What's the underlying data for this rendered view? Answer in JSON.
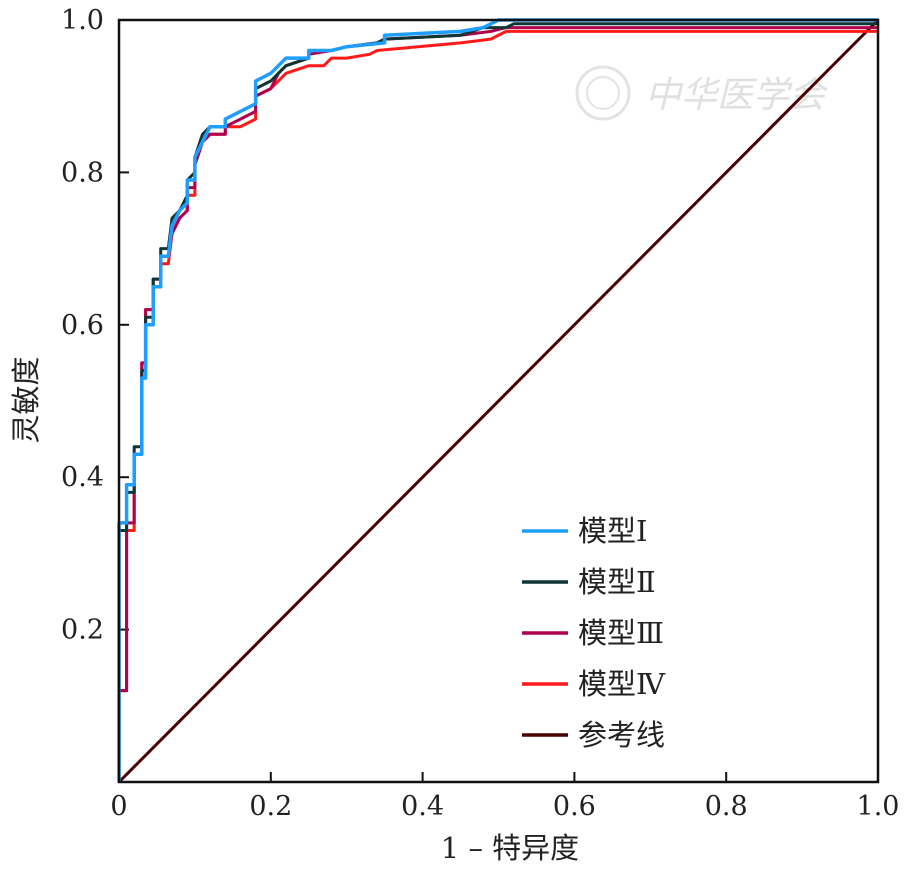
{
  "watermark": {
    "text": "中华医学会"
  },
  "chart_data": {
    "type": "line",
    "title": "",
    "xlabel": "1 – 特异度",
    "ylabel": "灵敏度",
    "xlim": [
      0,
      1
    ],
    "ylim": [
      0,
      1
    ],
    "x_ticks": [
      {
        "value": 0,
        "label": "0"
      },
      {
        "value": 0.2,
        "label": "0.2"
      },
      {
        "value": 0.4,
        "label": "0.4"
      },
      {
        "value": 0.6,
        "label": "0.6"
      },
      {
        "value": 0.8,
        "label": "0.8"
      },
      {
        "value": 1.0,
        "label": "1.0"
      }
    ],
    "y_ticks": [
      {
        "value": 0.2,
        "label": "0.2"
      },
      {
        "value": 0.4,
        "label": "0.4"
      },
      {
        "value": 0.6,
        "label": "0.6"
      },
      {
        "value": 0.8,
        "label": "0.8"
      },
      {
        "value": 1.0,
        "label": "1.0"
      }
    ],
    "grid": false,
    "legend_position": "bottom-right",
    "series": [
      {
        "name": "模型Ⅰ",
        "color": "#1e9fff",
        "width": 3.5,
        "points": [
          [
            0,
            0
          ],
          [
            0,
            0.34
          ],
          [
            0.01,
            0.34
          ],
          [
            0.01,
            0.39
          ],
          [
            0.02,
            0.39
          ],
          [
            0.02,
            0.43
          ],
          [
            0.03,
            0.43
          ],
          [
            0.03,
            0.53
          ],
          [
            0.035,
            0.53
          ],
          [
            0.035,
            0.6
          ],
          [
            0.045,
            0.6
          ],
          [
            0.045,
            0.65
          ],
          [
            0.055,
            0.65
          ],
          [
            0.055,
            0.69
          ],
          [
            0.065,
            0.69
          ],
          [
            0.07,
            0.73
          ],
          [
            0.08,
            0.75
          ],
          [
            0.09,
            0.76
          ],
          [
            0.09,
            0.79
          ],
          [
            0.1,
            0.79
          ],
          [
            0.1,
            0.82
          ],
          [
            0.11,
            0.84
          ],
          [
            0.12,
            0.86
          ],
          [
            0.14,
            0.86
          ],
          [
            0.14,
            0.87
          ],
          [
            0.16,
            0.88
          ],
          [
            0.18,
            0.89
          ],
          [
            0.18,
            0.92
          ],
          [
            0.2,
            0.93
          ],
          [
            0.21,
            0.94
          ],
          [
            0.22,
            0.95
          ],
          [
            0.25,
            0.95
          ],
          [
            0.25,
            0.96
          ],
          [
            0.28,
            0.96
          ],
          [
            0.3,
            0.965
          ],
          [
            0.35,
            0.97
          ],
          [
            0.35,
            0.98
          ],
          [
            0.45,
            0.985
          ],
          [
            0.48,
            0.99
          ],
          [
            0.49,
            0.995
          ],
          [
            0.5,
            1.0
          ],
          [
            1.0,
            1.0
          ]
        ]
      },
      {
        "name": "模型Ⅱ",
        "color": "#0f3535",
        "width": 3,
        "points": [
          [
            0,
            0
          ],
          [
            0,
            0.33
          ],
          [
            0.01,
            0.33
          ],
          [
            0.01,
            0.38
          ],
          [
            0.02,
            0.38
          ],
          [
            0.02,
            0.44
          ],
          [
            0.03,
            0.44
          ],
          [
            0.03,
            0.54
          ],
          [
            0.035,
            0.54
          ],
          [
            0.035,
            0.61
          ],
          [
            0.045,
            0.61
          ],
          [
            0.045,
            0.66
          ],
          [
            0.055,
            0.66
          ],
          [
            0.055,
            0.7
          ],
          [
            0.065,
            0.7
          ],
          [
            0.07,
            0.74
          ],
          [
            0.08,
            0.75
          ],
          [
            0.09,
            0.77
          ],
          [
            0.09,
            0.79
          ],
          [
            0.1,
            0.8
          ],
          [
            0.1,
            0.82
          ],
          [
            0.11,
            0.85
          ],
          [
            0.12,
            0.86
          ],
          [
            0.14,
            0.86
          ],
          [
            0.14,
            0.87
          ],
          [
            0.16,
            0.88
          ],
          [
            0.18,
            0.89
          ],
          [
            0.18,
            0.91
          ],
          [
            0.2,
            0.92
          ],
          [
            0.21,
            0.93
          ],
          [
            0.22,
            0.94
          ],
          [
            0.25,
            0.95
          ],
          [
            0.25,
            0.96
          ],
          [
            0.28,
            0.96
          ],
          [
            0.3,
            0.965
          ],
          [
            0.34,
            0.97
          ],
          [
            0.35,
            0.975
          ],
          [
            0.45,
            0.98
          ],
          [
            0.48,
            0.99
          ],
          [
            0.51,
            0.99
          ],
          [
            0.52,
            0.995
          ],
          [
            1.0,
            0.995
          ]
        ]
      },
      {
        "name": "模型Ⅲ",
        "color": "#b0004e",
        "width": 3,
        "points": [
          [
            0,
            0
          ],
          [
            0,
            0.12
          ],
          [
            0.01,
            0.12
          ],
          [
            0.01,
            0.34
          ],
          [
            0.02,
            0.34
          ],
          [
            0.02,
            0.43
          ],
          [
            0.03,
            0.43
          ],
          [
            0.03,
            0.55
          ],
          [
            0.035,
            0.55
          ],
          [
            0.035,
            0.62
          ],
          [
            0.045,
            0.62
          ],
          [
            0.045,
            0.66
          ],
          [
            0.055,
            0.66
          ],
          [
            0.055,
            0.69
          ],
          [
            0.065,
            0.69
          ],
          [
            0.07,
            0.72
          ],
          [
            0.08,
            0.74
          ],
          [
            0.09,
            0.75
          ],
          [
            0.09,
            0.78
          ],
          [
            0.1,
            0.78
          ],
          [
            0.1,
            0.81
          ],
          [
            0.11,
            0.84
          ],
          [
            0.12,
            0.85
          ],
          [
            0.14,
            0.85
          ],
          [
            0.14,
            0.86
          ],
          [
            0.16,
            0.87
          ],
          [
            0.18,
            0.88
          ],
          [
            0.18,
            0.9
          ],
          [
            0.2,
            0.91
          ],
          [
            0.21,
            0.93
          ],
          [
            0.22,
            0.94
          ],
          [
            0.25,
            0.95
          ],
          [
            0.25,
            0.955
          ],
          [
            0.28,
            0.96
          ],
          [
            0.3,
            0.965
          ],
          [
            0.34,
            0.97
          ],
          [
            0.35,
            0.975
          ],
          [
            0.45,
            0.98
          ],
          [
            0.49,
            0.985
          ],
          [
            0.51,
            0.99
          ],
          [
            1.0,
            0.99
          ]
        ]
      },
      {
        "name": "模型Ⅳ",
        "color": "#ff1a1a",
        "width": 3,
        "points": [
          [
            0,
            0
          ],
          [
            0,
            0.12
          ],
          [
            0.01,
            0.12
          ],
          [
            0.01,
            0.33
          ],
          [
            0.02,
            0.33
          ],
          [
            0.02,
            0.43
          ],
          [
            0.03,
            0.43
          ],
          [
            0.03,
            0.55
          ],
          [
            0.035,
            0.55
          ],
          [
            0.035,
            0.62
          ],
          [
            0.045,
            0.62
          ],
          [
            0.045,
            0.65
          ],
          [
            0.055,
            0.65
          ],
          [
            0.055,
            0.68
          ],
          [
            0.065,
            0.68
          ],
          [
            0.07,
            0.72
          ],
          [
            0.08,
            0.74
          ],
          [
            0.09,
            0.75
          ],
          [
            0.09,
            0.77
          ],
          [
            0.1,
            0.77
          ],
          [
            0.1,
            0.81
          ],
          [
            0.11,
            0.84
          ],
          [
            0.12,
            0.85
          ],
          [
            0.14,
            0.85
          ],
          [
            0.14,
            0.86
          ],
          [
            0.16,
            0.86
          ],
          [
            0.18,
            0.87
          ],
          [
            0.18,
            0.9
          ],
          [
            0.2,
            0.91
          ],
          [
            0.21,
            0.92
          ],
          [
            0.22,
            0.93
          ],
          [
            0.25,
            0.94
          ],
          [
            0.27,
            0.94
          ],
          [
            0.28,
            0.95
          ],
          [
            0.3,
            0.95
          ],
          [
            0.33,
            0.955
          ],
          [
            0.34,
            0.96
          ],
          [
            0.45,
            0.97
          ],
          [
            0.49,
            0.975
          ],
          [
            0.51,
            0.985
          ],
          [
            1.0,
            0.985
          ]
        ]
      },
      {
        "name": "参考线",
        "color": "#4a0000",
        "width": 3,
        "points": [
          [
            0,
            0
          ],
          [
            1,
            1
          ]
        ]
      }
    ]
  }
}
